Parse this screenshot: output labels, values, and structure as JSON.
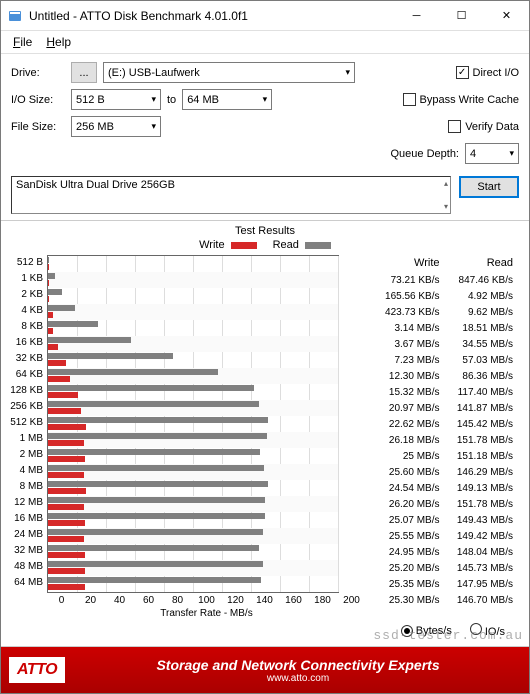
{
  "title": "Untitled - ATTO Disk Benchmark 4.01.0f1",
  "menu": {
    "file": "File",
    "help": "Help"
  },
  "labels": {
    "drive": "Drive:",
    "ioSize": "I/O Size:",
    "to": "to",
    "fileSize": "File Size:",
    "directIO": "Direct I/O",
    "bypass": "Bypass Write Cache",
    "verify": "Verify Data",
    "queueDepth": "Queue Depth:",
    "start": "Start",
    "testResults": "Test Results",
    "write": "Write",
    "read": "Read",
    "xlabel": "Transfer Rate - MB/s",
    "bytesPerS": "Bytes/s",
    "ioPerS": "IO/s"
  },
  "config": {
    "driveValue": "(E:) USB-Laufwerk",
    "ioSizeFrom": "512 B",
    "ioSizeTo": "64 MB",
    "fileSizeValue": "256 MB",
    "directIOChecked": true,
    "bypassChecked": false,
    "verifyChecked": false,
    "queueDepthValue": "4",
    "deviceText": "SanDisk Ultra Dual Drive 256GB"
  },
  "colors": {
    "write": "#d62828",
    "read": "#808080",
    "backdrop": "#ffffff"
  },
  "chart": {
    "xmax": 200,
    "xticks": [
      "0",
      "20",
      "40",
      "60",
      "80",
      "100",
      "120",
      "140",
      "160",
      "180",
      "200"
    ]
  },
  "rows": [
    {
      "label": "512 B",
      "writeVal": 0.07,
      "readVal": 0.85,
      "writeTxt": "73.21 KB/s",
      "readTxt": "847.46 KB/s"
    },
    {
      "label": "1 KB",
      "writeVal": 0.16,
      "readVal": 4.92,
      "writeTxt": "165.56 KB/s",
      "readTxt": "4.92 MB/s"
    },
    {
      "label": "2 KB",
      "writeVal": 0.42,
      "readVal": 9.62,
      "writeTxt": "423.73 KB/s",
      "readTxt": "9.62 MB/s"
    },
    {
      "label": "4 KB",
      "writeVal": 3.14,
      "readVal": 18.51,
      "writeTxt": "3.14 MB/s",
      "readTxt": "18.51 MB/s"
    },
    {
      "label": "8 KB",
      "writeVal": 3.67,
      "readVal": 34.55,
      "writeTxt": "3.67 MB/s",
      "readTxt": "34.55 MB/s"
    },
    {
      "label": "16 KB",
      "writeVal": 7.23,
      "readVal": 57.03,
      "writeTxt": "7.23 MB/s",
      "readTxt": "57.03 MB/s"
    },
    {
      "label": "32 KB",
      "writeVal": 12.3,
      "readVal": 86.36,
      "writeTxt": "12.30 MB/s",
      "readTxt": "86.36 MB/s"
    },
    {
      "label": "64 KB",
      "writeVal": 15.32,
      "readVal": 117.4,
      "writeTxt": "15.32 MB/s",
      "readTxt": "117.40 MB/s"
    },
    {
      "label": "128 KB",
      "writeVal": 20.97,
      "readVal": 141.87,
      "writeTxt": "20.97 MB/s",
      "readTxt": "141.87 MB/s"
    },
    {
      "label": "256 KB",
      "writeVal": 22.62,
      "readVal": 145.42,
      "writeTxt": "22.62 MB/s",
      "readTxt": "145.42 MB/s"
    },
    {
      "label": "512 KB",
      "writeVal": 26.18,
      "readVal": 151.78,
      "writeTxt": "26.18 MB/s",
      "readTxt": "151.78 MB/s"
    },
    {
      "label": "1 MB",
      "writeVal": 25.0,
      "readVal": 151.18,
      "writeTxt": "25 MB/s",
      "readTxt": "151.18 MB/s"
    },
    {
      "label": "2 MB",
      "writeVal": 25.6,
      "readVal": 146.29,
      "writeTxt": "25.60 MB/s",
      "readTxt": "146.29 MB/s"
    },
    {
      "label": "4 MB",
      "writeVal": 24.54,
      "readVal": 149.13,
      "writeTxt": "24.54 MB/s",
      "readTxt": "149.13 MB/s"
    },
    {
      "label": "8 MB",
      "writeVal": 26.2,
      "readVal": 151.78,
      "writeTxt": "26.20 MB/s",
      "readTxt": "151.78 MB/s"
    },
    {
      "label": "12 MB",
      "writeVal": 25.07,
      "readVal": 149.43,
      "writeTxt": "25.07 MB/s",
      "readTxt": "149.43 MB/s"
    },
    {
      "label": "16 MB",
      "writeVal": 25.55,
      "readVal": 149.42,
      "writeTxt": "25.55 MB/s",
      "readTxt": "149.42 MB/s"
    },
    {
      "label": "24 MB",
      "writeVal": 24.95,
      "readVal": 148.04,
      "writeTxt": "24.95 MB/s",
      "readTxt": "148.04 MB/s"
    },
    {
      "label": "32 MB",
      "writeVal": 25.2,
      "readVal": 145.73,
      "writeTxt": "25.20 MB/s",
      "readTxt": "145.73 MB/s"
    },
    {
      "label": "48 MB",
      "writeVal": 25.35,
      "readVal": 147.95,
      "writeTxt": "25.35 MB/s",
      "readTxt": "147.95 MB/s"
    },
    {
      "label": "64 MB",
      "writeVal": 25.3,
      "readVal": 146.7,
      "writeTxt": "25.30 MB/s",
      "readTxt": "146.70 MB/s"
    }
  ],
  "footer": {
    "logo": "ATTO",
    "tagline": "Storage and Network Connectivity Experts",
    "url": "www.atto.com"
  },
  "watermark": "ssd-tester.com.au"
}
